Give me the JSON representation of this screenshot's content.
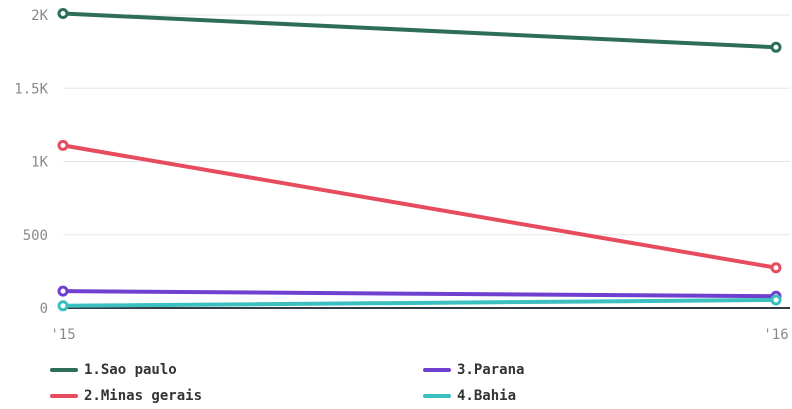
{
  "chart_data": {
    "type": "line",
    "x": [
      "'15",
      "'16"
    ],
    "yticks": [
      "0",
      "500",
      "1K",
      "1.5K",
      "2K"
    ],
    "ylim": [
      0,
      2000
    ],
    "grid": true,
    "legend_position": "bottom",
    "series": [
      {
        "name": "1.Sao paulo",
        "color": "#2e6e57",
        "values": [
          2010,
          1780
        ]
      },
      {
        "name": "2.Minas gerais",
        "color": "#e74c5e",
        "values": [
          1110,
          275
        ]
      },
      {
        "name": "3.Parana",
        "color": "#6f3fd0",
        "values": [
          115,
          80
        ]
      },
      {
        "name": "4.Bahia",
        "color": "#3bbfbf",
        "values": [
          15,
          55
        ]
      }
    ]
  }
}
